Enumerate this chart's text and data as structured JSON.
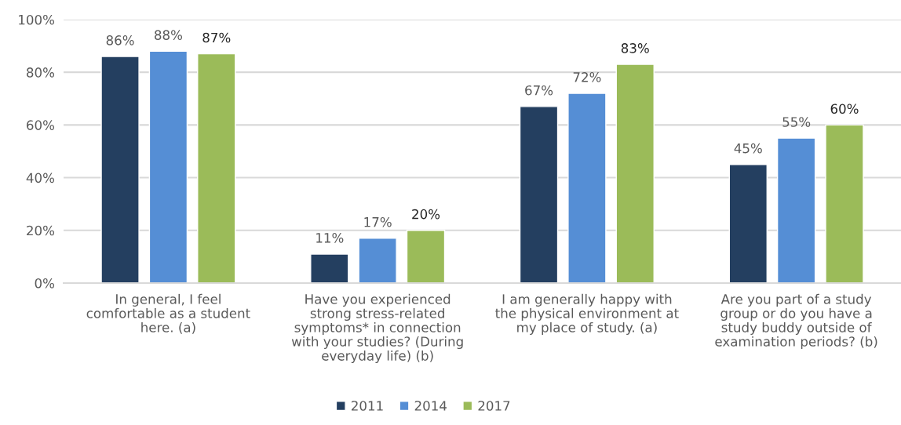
{
  "chart_data": {
    "type": "bar",
    "categories": [
      "In general, I feel comfortable as a student here. (a)",
      "Have you experienced strong stress-related symptoms* in connection with your studies? (During everyday life) (b)",
      "I am generally happy with the physical environment at my place of study. (a)",
      "Are you part of a study group or do you have a study buddy outside of examination periods? (b)"
    ],
    "series": [
      {
        "name": "2011",
        "color": "#243f60",
        "values": [
          86,
          11,
          67,
          45
        ],
        "value_labels": [
          "86%",
          "11%",
          "67%",
          "45%"
        ]
      },
      {
        "name": "2014",
        "color": "#558ed5",
        "values": [
          88,
          17,
          72,
          55
        ],
        "value_labels": [
          "88%",
          "17%",
          "72%",
          "55%"
        ]
      },
      {
        "name": "2017",
        "color": "#9bbb59",
        "values": [
          87,
          20,
          83,
          60
        ],
        "value_labels": [
          "87%",
          "20%",
          "83%",
          "60%"
        ]
      }
    ],
    "ylim": [
      0,
      100
    ],
    "yticks": [
      {
        "value": 0,
        "label": "0%"
      },
      {
        "value": 20,
        "label": "20%"
      },
      {
        "value": 40,
        "label": "40%"
      },
      {
        "value": 60,
        "label": "60%"
      },
      {
        "value": 80,
        "label": "80%"
      },
      {
        "value": 100,
        "label": "100%"
      }
    ],
    "grid": "y",
    "legend": "bottom"
  }
}
